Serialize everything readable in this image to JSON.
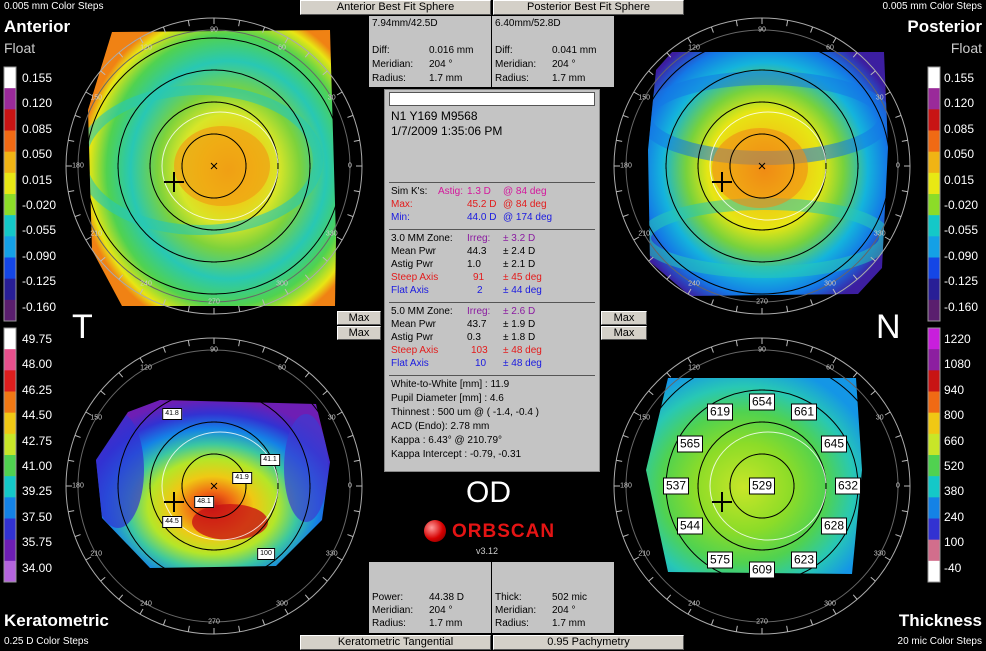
{
  "corners": {
    "tl_steps": "0.005 mm Color Steps",
    "tl_title": "Anterior",
    "tl_sub": "Float",
    "tr_steps": "0.005 mm Color Steps",
    "tr_title": "Posterior",
    "tr_sub": "Float",
    "bl_title": "Keratometric",
    "bl_steps": "0.25 D Color Steps",
    "br_title": "Thickness",
    "br_steps": "20 mic Color Steps"
  },
  "side": {
    "left": "T",
    "right": "N",
    "eye": "OD"
  },
  "top_buttons": {
    "anterior": "Anterior Best Fit Sphere",
    "posterior": "Posterior Best Fit Sphere"
  },
  "bottom_buttons": {
    "keratometric": "Keratometric Tangential",
    "pachymetry": "0.95 Pachymetry"
  },
  "max_buttons": [
    "Max",
    "Max",
    "Max",
    "Max"
  ],
  "anterior_panel": {
    "head": "7.94mm/42.5D",
    "diff_label": "Diff:",
    "diff": "0.016 mm",
    "meridian_label": "Meridian:",
    "meridian": "204 °",
    "radius_label": "Radius:",
    "radius": "1.7 mm"
  },
  "posterior_panel": {
    "head": "6.40mm/52.8D",
    "diff_label": "Diff:",
    "diff": "0.041 mm",
    "meridian_label": "Meridian:",
    "meridian": "204 °",
    "radius_label": "Radius:",
    "radius": "1.7 mm"
  },
  "kerato_panel": {
    "power_label": "Power:",
    "power": "44.38 D",
    "meridian_label": "Meridian:",
    "meridian": "204 °",
    "radius_label": "Radius:",
    "radius": "1.7 mm"
  },
  "thick_panel": {
    "thick_label": "Thick:",
    "thick": "502 mic",
    "meridian_label": "Meridian:",
    "meridian": "204 °",
    "radius_label": "Radius:",
    "radius": "1.7 mm"
  },
  "center": {
    "patient": "N1  Y169  M9568",
    "date": "1/7/2009 1:35:06 PM",
    "simk": {
      "label": "Sim K's:",
      "astig_label": "Astig:",
      "astig": "1.3 D",
      "astig_axis": "@ 84 deg",
      "max_label": "Max:",
      "max": "45.2 D",
      "max_axis": "@ 84 deg",
      "min_label": "Min:",
      "min": "44.0 D",
      "min_axis": "@ 174 deg"
    },
    "zone3": {
      "label": "3.0 MM Zone:",
      "irreg_label": "Irreg:",
      "irreg": "± 3.2 D",
      "mean_label": "Mean Pwr",
      "mean": "44.3",
      "mean_sd": "± 2.4 D",
      "astig_label": "Astig Pwr",
      "astig": "1.0",
      "astig_sd": "± 2.1 D",
      "steep_label": "Steep Axis",
      "steep": "91",
      "steep_sd": "± 45 deg",
      "flat_label": "Flat Axis",
      "flat": "2",
      "flat_sd": "± 44 deg"
    },
    "zone5": {
      "label": "5.0 MM Zone:",
      "irreg_label": "Irreg:",
      "irreg": "± 2.6 D",
      "mean_label": "Mean Pwr",
      "mean": "43.7",
      "mean_sd": "± 1.9 D",
      "astig_label": "Astig Pwr",
      "astig": "0.3",
      "astig_sd": "± 1.8 D",
      "steep_label": "Steep Axis",
      "steep": "103",
      "steep_sd": "± 48 deg",
      "flat_label": "Flat Axis",
      "flat": "10",
      "flat_sd": "± 48 deg"
    },
    "info": [
      "White-to-White [mm] : 11.9",
      "Pupil Diameter [mm] :  4.6",
      "Thinnest : 500 um @ ( -1.4, -0.4 )",
      "ACD (Endo): 2.78 mm",
      "Kappa : 6.43° @ 210.79°",
      "Kappa Intercept : -0.79, -0.31"
    ]
  },
  "brand": {
    "name": "ORBSCAN",
    "version": "v3.12"
  },
  "legends": {
    "anterior": [
      "0.155",
      "0.120",
      "0.085",
      "0.050",
      "0.015",
      "-0.020",
      "-0.055",
      "-0.090",
      "-0.125",
      "-0.160"
    ],
    "posterior": [
      "0.155",
      "0.120",
      "0.085",
      "0.050",
      "0.015",
      "-0.020",
      "-0.055",
      "-0.090",
      "-0.125",
      "-0.160"
    ],
    "kerato": [
      "49.75",
      "48.00",
      "46.25",
      "44.50",
      "42.75",
      "41.00",
      "39.25",
      "37.50",
      "35.75",
      "34.00"
    ],
    "thick": [
      "1220",
      "1080",
      "940",
      "800",
      "660",
      "520",
      "380",
      "240",
      "100",
      "-40"
    ]
  },
  "scale_colors": {
    "float": [
      "#ffffff",
      "#9a2a9a",
      "#c81414",
      "#f06a14",
      "#f0b414",
      "#e8e814",
      "#8cdc28",
      "#14c8c8",
      "#14a0e6",
      "#1446e6",
      "#281e96",
      "#5a1e6e"
    ],
    "kerato": [
      "#ffffff",
      "#e6508c",
      "#dc1e1e",
      "#f07814",
      "#f0c814",
      "#c8e628",
      "#50d250",
      "#14c8c8",
      "#1482e6",
      "#3232d2",
      "#6e1eb4",
      "#b464dc"
    ],
    "thick": [
      "#c81edc",
      "#8c1ea0",
      "#c81414",
      "#f06a14",
      "#f0c814",
      "#c8e628",
      "#50d250",
      "#14c8c8",
      "#1482e6",
      "#3232d2",
      "#d26e8c",
      "#ffffff"
    ]
  },
  "compass_labels": [
    "90",
    "60",
    "30",
    "0",
    "330",
    "300",
    "270",
    "240",
    "210",
    "180",
    "150",
    "120"
  ],
  "pachy_values": [
    "654",
    "619",
    "661",
    "565",
    "645",
    "537",
    "529",
    "632",
    "544",
    "628",
    "575",
    "609",
    "623"
  ],
  "kerato_tags": [
    "41.8",
    "41.1",
    "41.9",
    "48.1",
    "44.5",
    "100"
  ]
}
